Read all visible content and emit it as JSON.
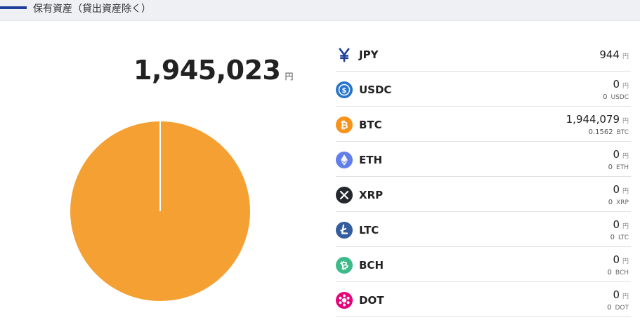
{
  "header": {
    "title": "保有資産（貸出資産除く）"
  },
  "total": {
    "value": "1,945,023",
    "unit": "円"
  },
  "colors": {
    "btc": "#f5a033",
    "header_bar": "#1d3f9a",
    "pie_divider": "#ffffff"
  },
  "chart_data": {
    "type": "pie",
    "categories": [
      "JPY",
      "USDC",
      "BTC",
      "ETH",
      "XRP",
      "LTC",
      "BCH",
      "DOT"
    ],
    "values": [
      944,
      0,
      1944079,
      0,
      0,
      0,
      0,
      0
    ]
  },
  "assets": [
    {
      "symbol": "JPY",
      "icon": "yen-icon",
      "color": "#1d3f9a",
      "amount": "944",
      "amount_unit": "円"
    },
    {
      "symbol": "USDC",
      "icon": "usdc-icon",
      "color": "#2775ca",
      "amount": "0",
      "amount_unit": "円",
      "qty": "0",
      "qty_unit": "USDC"
    },
    {
      "symbol": "BTC",
      "icon": "bitcoin-icon",
      "color": "#f7931a",
      "amount": "1,944,079",
      "amount_unit": "円",
      "qty": "0.1562",
      "qty_unit": "BTC"
    },
    {
      "symbol": "ETH",
      "icon": "ethereum-icon",
      "color": "#627eea",
      "amount": "0",
      "amount_unit": "円",
      "qty": "0",
      "qty_unit": "ETH"
    },
    {
      "symbol": "XRP",
      "icon": "xrp-icon",
      "color": "#23292f",
      "amount": "0",
      "amount_unit": "円",
      "qty": "0",
      "qty_unit": "XRP"
    },
    {
      "symbol": "LTC",
      "icon": "litecoin-icon",
      "color": "#345d9d",
      "amount": "0",
      "amount_unit": "円",
      "qty": "0",
      "qty_unit": "LTC"
    },
    {
      "symbol": "BCH",
      "icon": "bch-icon",
      "color": "#3dba8a",
      "amount": "0",
      "amount_unit": "円",
      "qty": "0",
      "qty_unit": "BCH"
    },
    {
      "symbol": "DOT",
      "icon": "polkadot-icon",
      "color": "#e6007a",
      "amount": "0",
      "amount_unit": "円",
      "qty": "0",
      "qty_unit": "DOT"
    }
  ]
}
